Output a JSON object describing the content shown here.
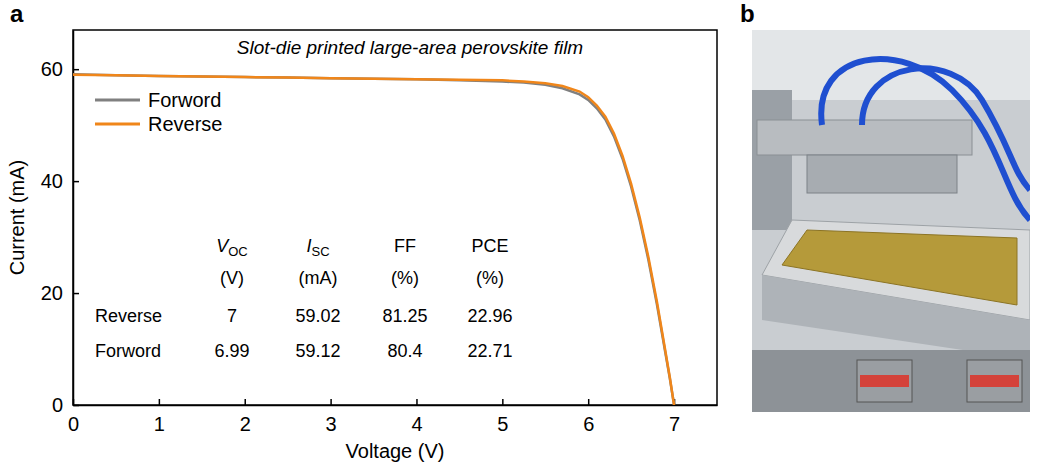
{
  "chart_data": {
    "type": "line",
    "panel_label": "a",
    "title": "Slot-die printed large-area perovskite film",
    "x_label": "Voltage (V)",
    "y_label": "Current (mA)",
    "x": [
      0,
      0.5,
      1,
      1.5,
      2,
      2.5,
      3,
      3.5,
      4,
      4.5,
      5,
      5.25,
      5.5,
      5.7,
      5.9,
      6.0,
      6.1,
      6.2,
      6.3,
      6.4,
      6.5,
      6.6,
      6.7,
      6.8,
      6.9,
      6.95,
      7.0
    ],
    "series": [
      {
        "name": "Forword",
        "color": "#808080",
        "values": [
          59.1,
          58.9,
          58.8,
          58.7,
          58.6,
          58.5,
          58.4,
          58.3,
          58.2,
          58.0,
          57.8,
          57.6,
          57.2,
          56.6,
          55.5,
          54.5,
          53.0,
          51.0,
          48.0,
          44.0,
          39.0,
          33.0,
          26.0,
          18.0,
          9.2,
          4.8,
          0
        ]
      },
      {
        "name": "Reverse",
        "color": "#f0861a",
        "values": [
          59.0,
          58.9,
          58.8,
          58.7,
          58.6,
          58.5,
          58.4,
          58.3,
          58.2,
          58.1,
          58.0,
          57.8,
          57.5,
          57.0,
          56.0,
          55.0,
          53.5,
          51.5,
          48.5,
          44.5,
          39.5,
          33.5,
          26.5,
          18.5,
          9.5,
          5.0,
          0
        ]
      }
    ],
    "xlim": [
      0,
      7.5
    ],
    "ylim": [
      0,
      67
    ],
    "xticks": [
      0,
      1,
      2,
      3,
      4,
      5,
      6,
      7
    ],
    "yticks": [
      0,
      20,
      40,
      60
    ],
    "legend": "upper left",
    "table": {
      "columns": [
        {
          "symbol": "V",
          "subscript": "OC",
          "unit": "(V)"
        },
        {
          "symbol": "I",
          "subscript": "SC",
          "unit": "(mA)"
        },
        {
          "symbol": "FF",
          "unit": "(%)"
        },
        {
          "symbol": "PCE",
          "unit": "(%)"
        }
      ],
      "rows": [
        {
          "name": "Reverse",
          "values": [
            7,
            59.02,
            81.25,
            22.96
          ]
        },
        {
          "name": "Forword",
          "values": [
            6.99,
            59.12,
            80.4,
            22.71
          ]
        }
      ]
    }
  },
  "photo": {
    "panel_label": "b"
  }
}
